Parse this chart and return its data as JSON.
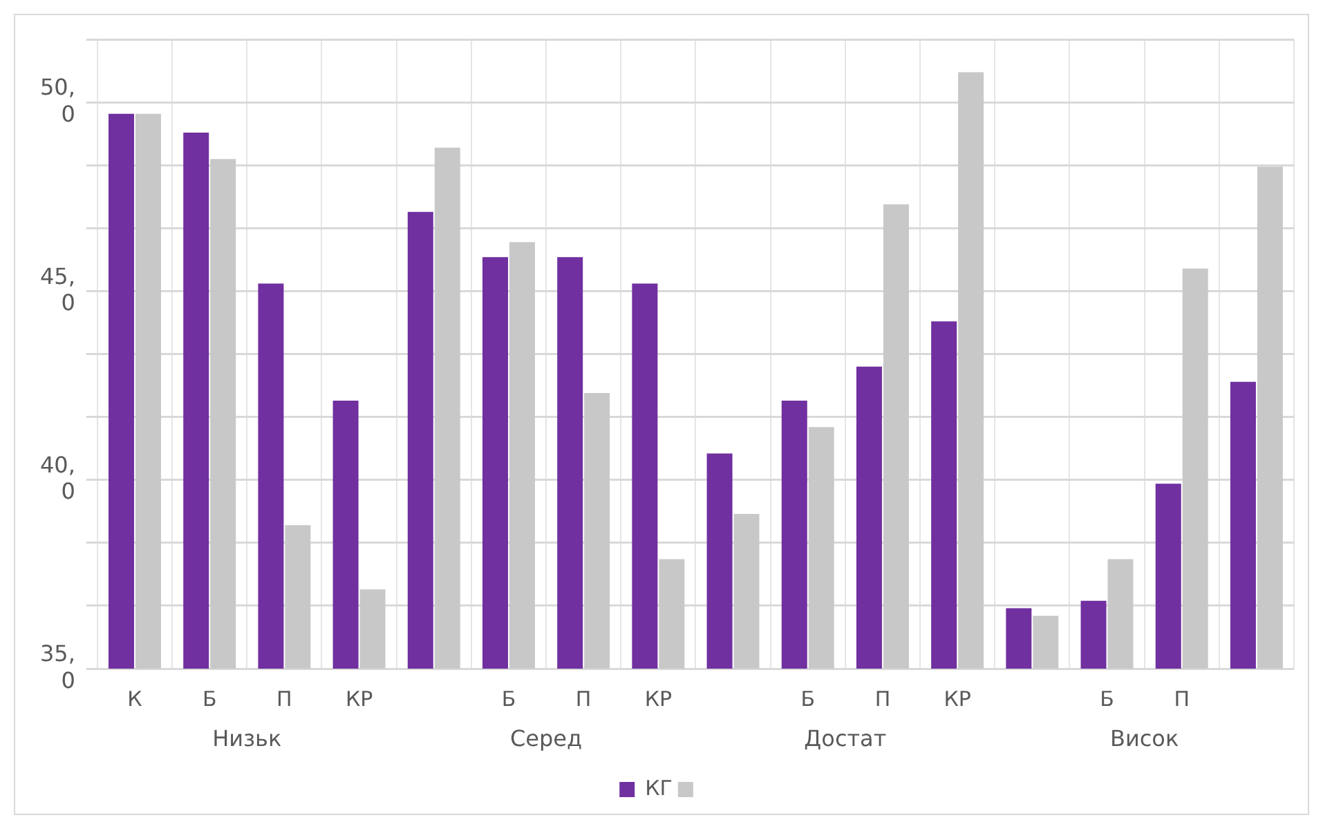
{
  "chart_data": {
    "type": "bar",
    "categories": [
      "К",
      "Б",
      "П",
      "КР",
      null,
      "Б",
      "П",
      "КР",
      null,
      "Б",
      "П",
      "КР",
      null,
      "Б",
      "П",
      null
    ],
    "annotations": [
      "Низьк",
      "Серед",
      "Достат",
      "Висок"
    ],
    "series": [
      {
        "name": "КГ",
        "color": "#7030a0",
        "values": [
          49.7,
          49.2,
          45.2,
          42.1,
          47.1,
          45.9,
          45.9,
          45.2,
          40.7,
          42.1,
          43.0,
          44.2,
          36.6,
          36.8,
          39.9,
          42.6
        ]
      },
      {
        "color": "#c8c8c8",
        "values": [
          49.7,
          48.5,
          38.8,
          37.1,
          48.8,
          46.3,
          42.3,
          37.9,
          39.1,
          41.4,
          47.3,
          50.8,
          36.4,
          37.9,
          45.6,
          48.3
        ]
      }
    ],
    "ylim": [
      35,
      51.667
    ],
    "yticks": [
      {
        "value": 35,
        "label": "35,0"
      },
      {
        "value": 36.667,
        "label": null
      },
      {
        "value": 38.333,
        "label": null
      },
      {
        "value": 40,
        "label": "40,0"
      },
      {
        "value": 41.667,
        "label": null
      },
      {
        "value": 43.333,
        "label": null
      },
      {
        "value": 45,
        "label": "45,0"
      },
      {
        "value": 46.667,
        "label": null
      },
      {
        "value": 48.333,
        "label": null
      },
      {
        "value": 50,
        "label": "50,0"
      },
      {
        "value": 51.667,
        "label": null
      }
    ],
    "grid": true,
    "legend": "bottom"
  }
}
